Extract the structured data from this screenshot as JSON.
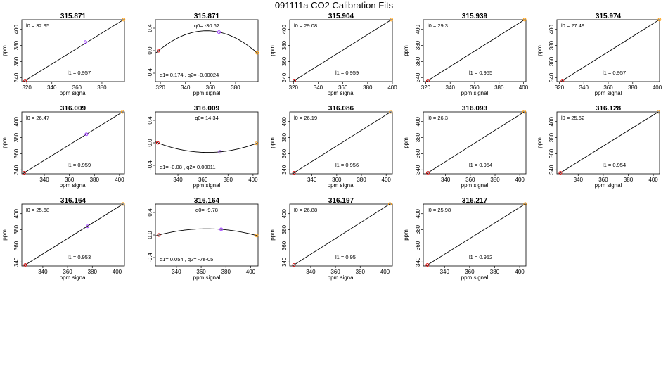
{
  "figure": {
    "title": "091111a   CO2 Calibration Fits"
  },
  "colors": {
    "low_point": "#dd0000",
    "mid_point": "#9933ff",
    "high_point": "#ff9900",
    "line": "#000000"
  },
  "chart_data": [
    {
      "type": "scatter",
      "title": "315.871",
      "xlabel": "ppm signal",
      "ylabel": "ppm",
      "xlim": [
        316,
        398
      ],
      "ylim": [
        335,
        412
      ],
      "xticks": [
        320,
        340,
        360,
        380
      ],
      "yticks": [
        340,
        360,
        380,
        400
      ],
      "points": [
        {
          "x": 318.6,
          "y": 336.3,
          "role": "low"
        },
        {
          "x": 366.8,
          "y": 384.2,
          "role": "mid"
        },
        {
          "x": 397.3,
          "y": 412.1,
          "role": "high"
        }
      ],
      "fit": {
        "kind": "linear",
        "l0": 32.95,
        "l1": 0.957
      },
      "labels": {
        "top": "l0 =  32.95",
        "bottom": "l1 =  0.957"
      }
    },
    {
      "type": "scatter",
      "title": "315.871",
      "xlabel": "ppm signal",
      "ylabel": "",
      "xlim": [
        316,
        398
      ],
      "ylim": [
        -0.55,
        0.55
      ],
      "xticks": [
        320,
        340,
        360,
        380
      ],
      "yticks": [
        -0.4,
        0.0,
        0.4
      ],
      "points": [
        {
          "x": 318.6,
          "y": 0.0,
          "role": "low"
        },
        {
          "x": 366.8,
          "y": 0.33,
          "role": "mid"
        },
        {
          "x": 397.3,
          "y": -0.04,
          "role": "high"
        }
      ],
      "fit": {
        "kind": "quadratic",
        "q0": -30.62,
        "q1": 0.174,
        "q2": -0.00024
      },
      "labels": {
        "top": "q0=  -30.62",
        "bottom": "q1=  0.174  ,  q2=  -0.00024"
      }
    },
    {
      "type": "scatter",
      "title": "315.904",
      "xlabel": "ppm signal",
      "ylabel": "ppm",
      "xlim": [
        317,
        400
      ],
      "ylim": [
        335,
        412
      ],
      "xticks": [
        320,
        340,
        360,
        380,
        400
      ],
      "yticks": [
        340,
        360,
        380,
        400
      ],
      "points": [
        {
          "x": 320.7,
          "y": 336.3,
          "role": "low"
        },
        {
          "x": 399.2,
          "y": 412.1,
          "role": "high"
        }
      ],
      "fit": {
        "kind": "linear",
        "l0": 29.08,
        "l1": 0.959
      },
      "labels": {
        "top": "l0 =  29.08",
        "bottom": "l1 =  0.959"
      }
    },
    {
      "type": "scatter",
      "title": "315.939",
      "xlabel": "ppm signal",
      "ylabel": "ppm",
      "xlim": [
        318,
        402
      ],
      "ylim": [
        335,
        412
      ],
      "xticks": [
        320,
        340,
        360,
        380,
        400
      ],
      "yticks": [
        340,
        360,
        380,
        400
      ],
      "points": [
        {
          "x": 321.7,
          "y": 336.3,
          "role": "low"
        },
        {
          "x": 400.9,
          "y": 412.1,
          "role": "high"
        }
      ],
      "fit": {
        "kind": "linear",
        "l0": 29.3,
        "l1": 0.955
      },
      "labels": {
        "top": "l0 =  29.3",
        "bottom": "l1 =  0.955"
      }
    },
    {
      "type": "scatter",
      "title": "315.974",
      "xlabel": "ppm signal",
      "ylabel": "ppm",
      "xlim": [
        318,
        402
      ],
      "ylim": [
        335,
        412
      ],
      "xticks": [
        320,
        340,
        360,
        380,
        400
      ],
      "yticks": [
        340,
        360,
        380,
        400
      ],
      "points": [
        {
          "x": 322.5,
          "y": 336.3,
          "role": "low"
        },
        {
          "x": 401.9,
          "y": 412.1,
          "role": "high"
        }
      ],
      "fit": {
        "kind": "linear",
        "l0": 27.49,
        "l1": 0.957
      },
      "labels": {
        "top": "l0 =  27.49",
        "bottom": "l1 =  0.957"
      }
    },
    {
      "type": "scatter",
      "title": "316.009",
      "xlabel": "ppm signal",
      "ylabel": "ppm",
      "xlim": [
        322,
        404
      ],
      "ylim": [
        335,
        412
      ],
      "xticks": [
        340,
        360,
        380,
        400
      ],
      "yticks": [
        340,
        360,
        380,
        400
      ],
      "points": [
        {
          "x": 323.9,
          "y": 336.3,
          "role": "low"
        },
        {
          "x": 373.6,
          "y": 384.2,
          "role": "mid"
        },
        {
          "x": 402.6,
          "y": 412.1,
          "role": "high"
        }
      ],
      "fit": {
        "kind": "linear",
        "l0": 26.47,
        "l1": 0.959
      },
      "labels": {
        "top": "l0 =  26.47",
        "bottom": "l1 =  0.959"
      }
    },
    {
      "type": "scatter",
      "title": "316.009",
      "xlabel": "ppm signal",
      "ylabel": "",
      "xlim": [
        322,
        404
      ],
      "ylim": [
        -0.55,
        0.55
      ],
      "xticks": [
        340,
        360,
        380,
        400
      ],
      "yticks": [
        -0.4,
        0.0,
        0.4
      ],
      "points": [
        {
          "x": 323.9,
          "y": 0.0,
          "role": "low"
        },
        {
          "x": 373.6,
          "y": -0.16,
          "role": "mid"
        },
        {
          "x": 402.6,
          "y": -0.01,
          "role": "high"
        }
      ],
      "fit": {
        "kind": "quadratic",
        "q0": 14.34,
        "q1": -0.08,
        "q2": 0.00011
      },
      "labels": {
        "top": "q0=  14.34",
        "bottom": "q1=  -0.08  ,  q2=  0.00011"
      }
    },
    {
      "type": "scatter",
      "title": "316.086",
      "xlabel": "ppm signal",
      "ylabel": "ppm",
      "xlim": [
        322,
        405
      ],
      "ylim": [
        335,
        412
      ],
      "xticks": [
        340,
        360,
        380,
        400
      ],
      "yticks": [
        340,
        360,
        380,
        400
      ],
      "points": [
        {
          "x": 325.5,
          "y": 336.3,
          "role": "low"
        },
        {
          "x": 403.8,
          "y": 412.1,
          "role": "high"
        }
      ],
      "fit": {
        "kind": "linear",
        "l0": 26.19,
        "l1": 0.956
      },
      "labels": {
        "top": "l0 =  26.19",
        "bottom": "l1 =  0.956"
      }
    },
    {
      "type": "scatter",
      "title": "316.093",
      "xlabel": "ppm signal",
      "ylabel": "ppm",
      "xlim": [
        322,
        405
      ],
      "ylim": [
        335,
        412
      ],
      "xticks": [
        340,
        360,
        380,
        400
      ],
      "yticks": [
        340,
        360,
        380,
        400
      ],
      "points": [
        {
          "x": 325.7,
          "y": 336.3,
          "role": "low"
        },
        {
          "x": 403.6,
          "y": 412.1,
          "role": "high"
        }
      ],
      "fit": {
        "kind": "linear",
        "l0": 26.3,
        "l1": 0.954
      },
      "labels": {
        "top": "l0 =  26.3",
        "bottom": "l1 =  0.954"
      }
    },
    {
      "type": "scatter",
      "title": "316.128",
      "xlabel": "ppm signal",
      "ylabel": "ppm",
      "xlim": [
        323,
        405
      ],
      "ylim": [
        335,
        412
      ],
      "xticks": [
        340,
        360,
        380,
        400
      ],
      "yticks": [
        340,
        360,
        380,
        400
      ],
      "points": [
        {
          "x": 325.8,
          "y": 336.3,
          "role": "low"
        },
        {
          "x": 404.1,
          "y": 412.1,
          "role": "high"
        }
      ],
      "fit": {
        "kind": "linear",
        "l0": 25.62,
        "l1": 0.954
      },
      "labels": {
        "top": "l0 =  25.62",
        "bottom": "l1 =  0.954"
      }
    },
    {
      "type": "scatter",
      "title": "316.164",
      "xlabel": "ppm signal",
      "ylabel": "ppm",
      "xlim": [
        323,
        406
      ],
      "ylim": [
        335,
        412
      ],
      "xticks": [
        340,
        360,
        380,
        400
      ],
      "yticks": [
        340,
        360,
        380,
        400
      ],
      "points": [
        {
          "x": 325.8,
          "y": 336.3,
          "role": "low"
        },
        {
          "x": 376.2,
          "y": 384.2,
          "role": "mid"
        },
        {
          "x": 404.9,
          "y": 412.1,
          "role": "high"
        }
      ],
      "fit": {
        "kind": "linear",
        "l0": 25.68,
        "l1": 0.953
      },
      "labels": {
        "top": "l0 =  25.68",
        "bottom": "l1 =  0.953"
      }
    },
    {
      "type": "scatter",
      "title": "316.164",
      "xlabel": "ppm signal",
      "ylabel": "",
      "xlim": [
        323,
        406
      ],
      "ylim": [
        -0.55,
        0.55
      ],
      "xticks": [
        340,
        360,
        380,
        400
      ],
      "yticks": [
        -0.4,
        0.0,
        0.4
      ],
      "points": [
        {
          "x": 325.8,
          "y": 0.0,
          "role": "low"
        },
        {
          "x": 376.2,
          "y": 0.1,
          "role": "mid"
        },
        {
          "x": 404.9,
          "y": -0.01,
          "role": "high"
        }
      ],
      "fit": {
        "kind": "quadratic",
        "q0": -9.78,
        "q1": 0.054,
        "q2": -7e-05
      },
      "labels": {
        "top": "q0=  -9.78",
        "bottom": "q1=  0.054  ,  q2=  -7e-05"
      }
    },
    {
      "type": "scatter",
      "title": "316.197",
      "xlabel": "ppm signal",
      "ylabel": "ppm",
      "xlim": [
        323,
        406
      ],
      "ylim": [
        335,
        412
      ],
      "xticks": [
        340,
        360,
        380,
        400
      ],
      "yticks": [
        340,
        360,
        380,
        400
      ],
      "points": [
        {
          "x": 326.4,
          "y": 336.3,
          "role": "low"
        },
        {
          "x": 404.0,
          "y": 412.1,
          "role": "high"
        }
      ],
      "fit": {
        "kind": "linear",
        "l0": 26.88,
        "l1": 0.95
      },
      "labels": {
        "top": "l0 =  26.88",
        "bottom": "l1 =  0.95"
      }
    },
    {
      "type": "scatter",
      "title": "316.217",
      "xlabel": "ppm signal",
      "ylabel": "ppm",
      "xlim": [
        323,
        405
      ],
      "ylim": [
        335,
        412
      ],
      "xticks": [
        340,
        360,
        380,
        400
      ],
      "yticks": [
        340,
        360,
        380,
        400
      ],
      "points": [
        {
          "x": 326.3,
          "y": 336.3,
          "role": "low"
        },
        {
          "x": 404.4,
          "y": 412.1,
          "role": "high"
        }
      ],
      "fit": {
        "kind": "linear",
        "l0": 25.98,
        "l1": 0.952
      },
      "labels": {
        "top": "l0 =  25.98",
        "bottom": "l1 =  0.952"
      }
    }
  ]
}
